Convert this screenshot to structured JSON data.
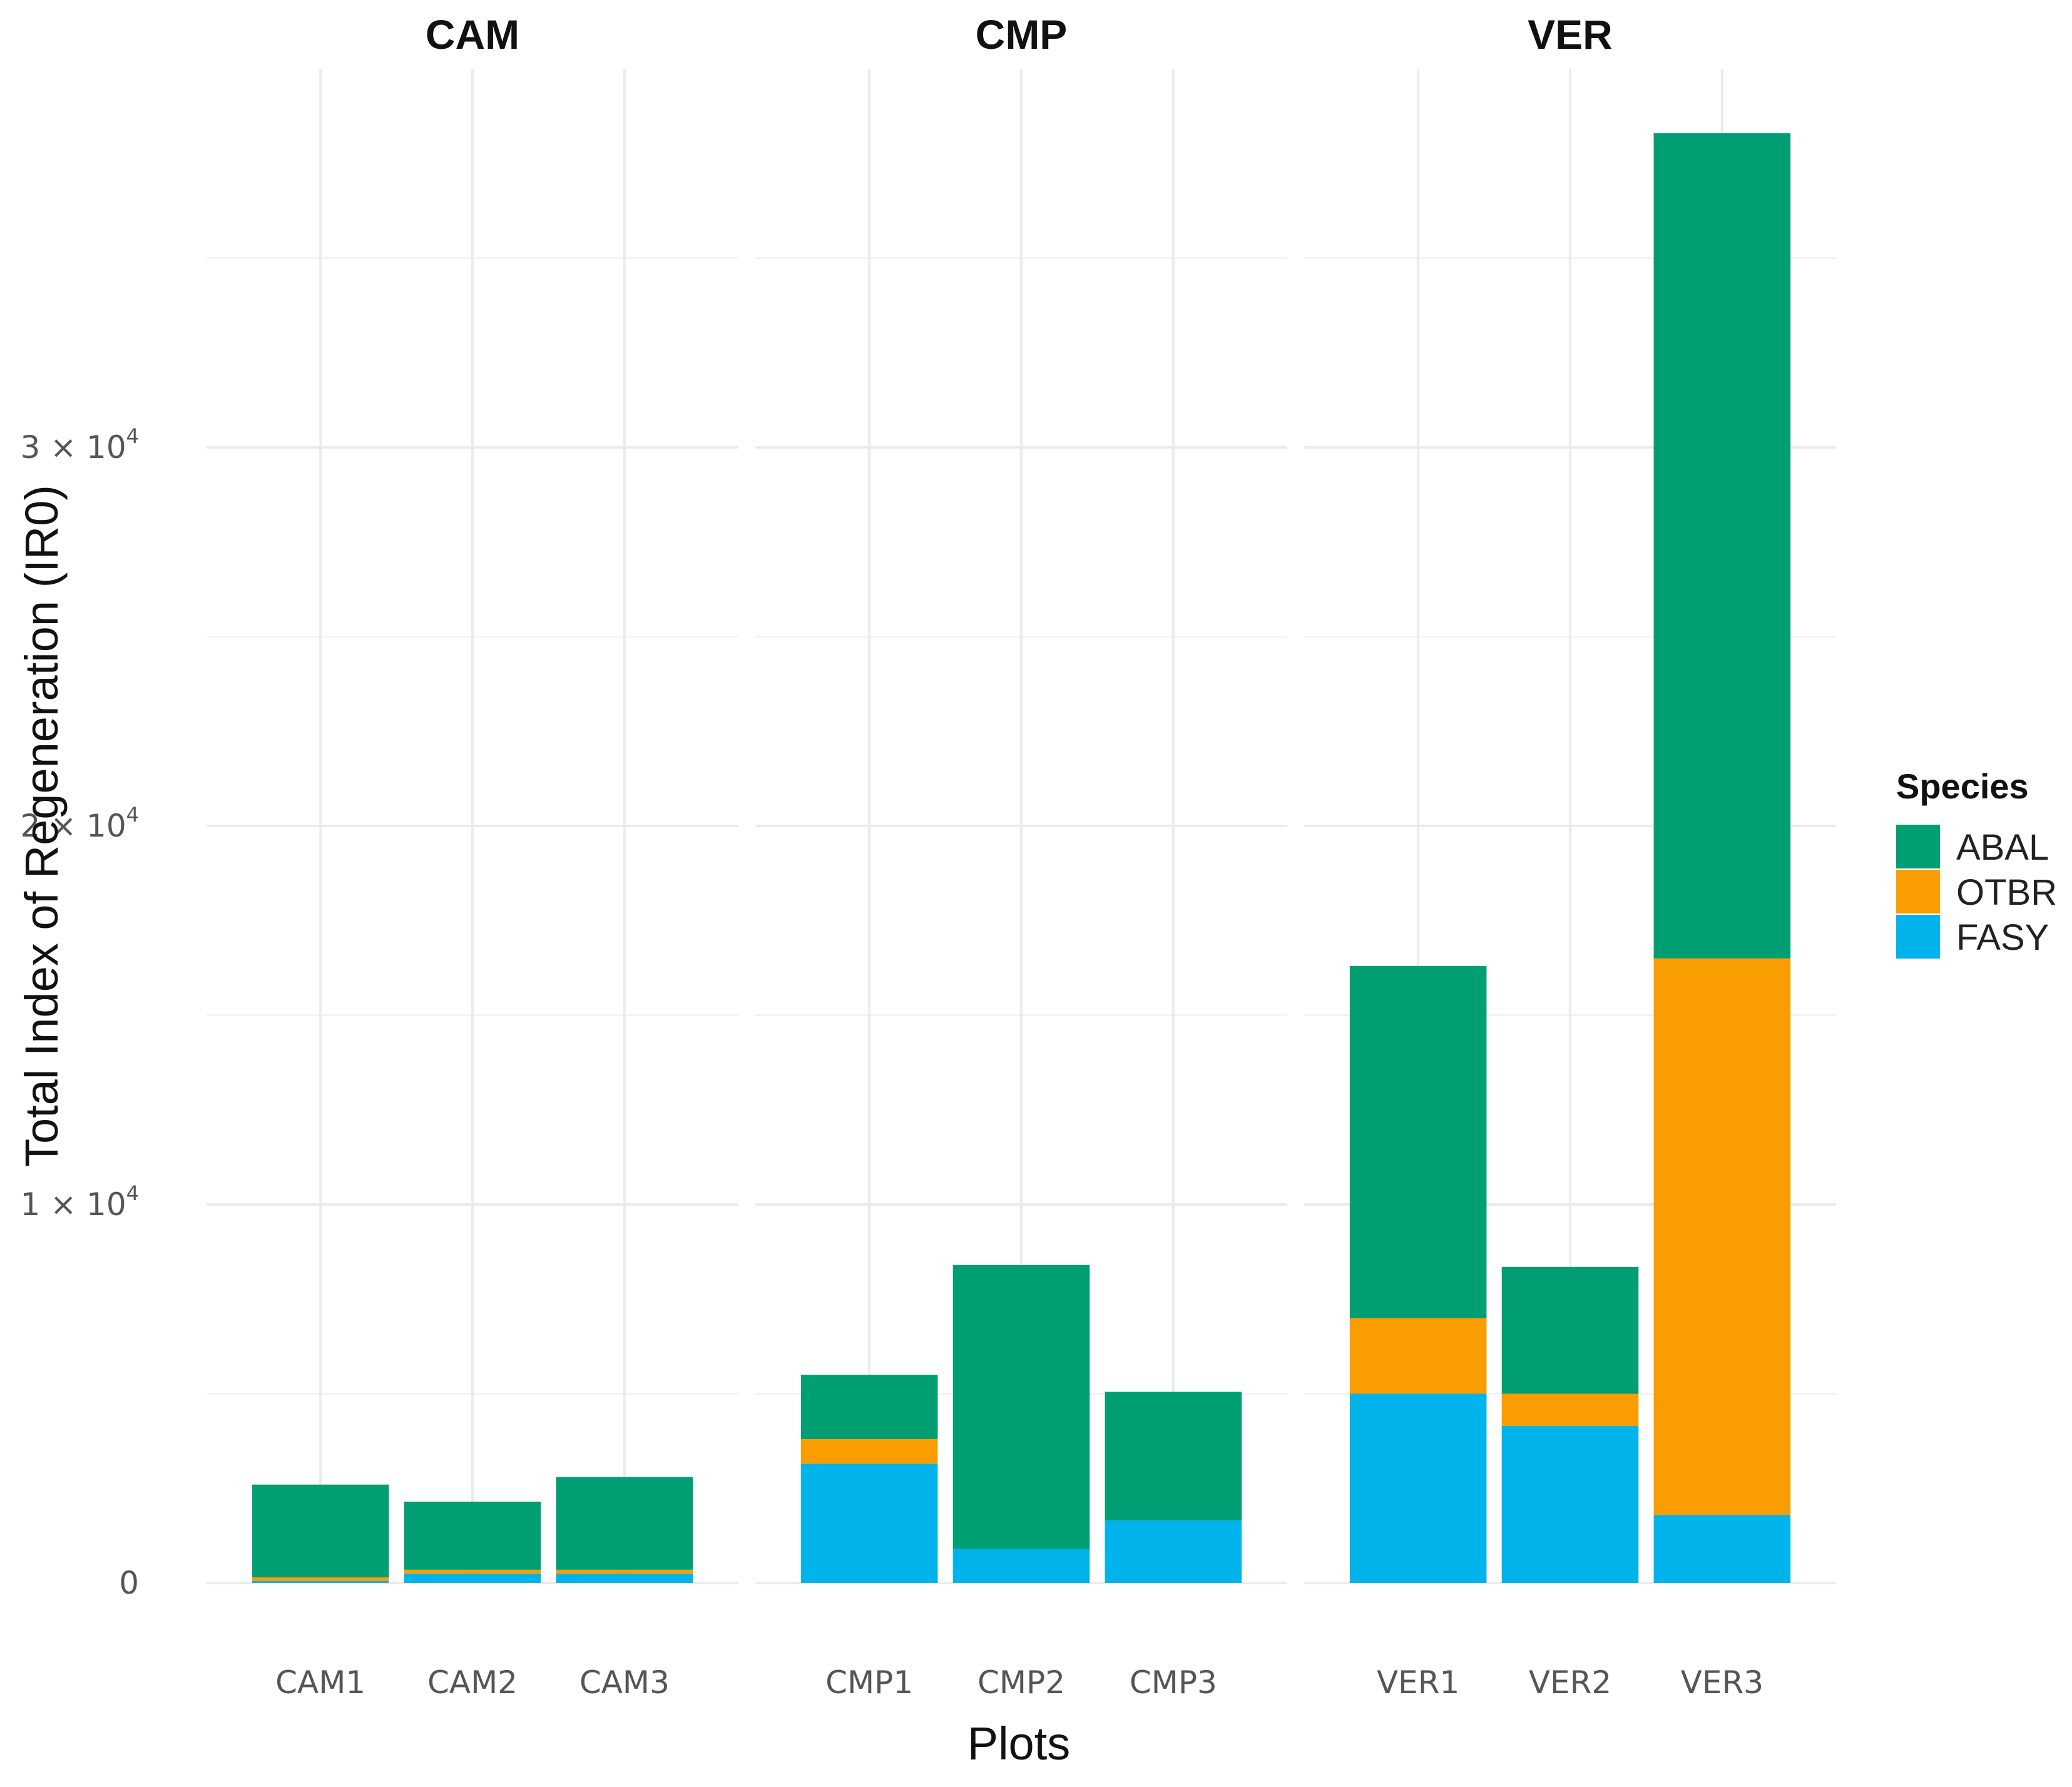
{
  "chart_data": {
    "type": "bar",
    "stacked": true,
    "xlabel": "Plots",
    "ylabel": "Total Index of Regeneration (IR0)",
    "ylim": [
      0,
      40000
    ],
    "yticks": [
      {
        "value": 0,
        "label": "0"
      },
      {
        "value": 10000,
        "mantissa": "1",
        "times": " × ",
        "base": "10",
        "exp": "4"
      },
      {
        "value": 20000,
        "mantissa": "2",
        "times": " × ",
        "base": "10",
        "exp": "4"
      },
      {
        "value": 30000,
        "mantissa": "3",
        "times": " × ",
        "base": "10",
        "exp": "4"
      }
    ],
    "grid": true,
    "legend": {
      "title": "Species",
      "position": "right",
      "entries": [
        {
          "name": "ABAL",
          "color": "#009E73"
        },
        {
          "name": "OTBR",
          "color": "#F99D00"
        },
        {
          "name": "FASY",
          "color": "#00B3EA"
        }
      ]
    },
    "stack_order": [
      "FASY",
      "OTBR",
      "ABAL"
    ],
    "facets": [
      {
        "title": "CAM",
        "categories": [
          "CAM1",
          "CAM2",
          "CAM3"
        ],
        "series": [
          {
            "name": "FASY",
            "values": [
              50,
              250,
              250
            ]
          },
          {
            "name": "OTBR",
            "values": [
              100,
              100,
              100
            ]
          },
          {
            "name": "ABAL",
            "values": [
              2450,
              1800,
              2450
            ]
          }
        ]
      },
      {
        "title": "CMP",
        "categories": [
          "CMP1",
          "CMP2",
          "CMP3"
        ],
        "series": [
          {
            "name": "FASY",
            "values": [
              3150,
              900,
              1650
            ]
          },
          {
            "name": "OTBR",
            "values": [
              650,
              0,
              0
            ]
          },
          {
            "name": "ABAL",
            "values": [
              1700,
              7500,
              3400
            ]
          }
        ]
      },
      {
        "title": "VER",
        "categories": [
          "VER1",
          "VER2",
          "VER3"
        ],
        "series": [
          {
            "name": "FASY",
            "values": [
              5000,
              4150,
              1800
            ]
          },
          {
            "name": "OTBR",
            "values": [
              2000,
              850,
              14700
            ]
          },
          {
            "name": "ABAL",
            "values": [
              9300,
              3350,
              21800
            ]
          }
        ]
      }
    ]
  }
}
